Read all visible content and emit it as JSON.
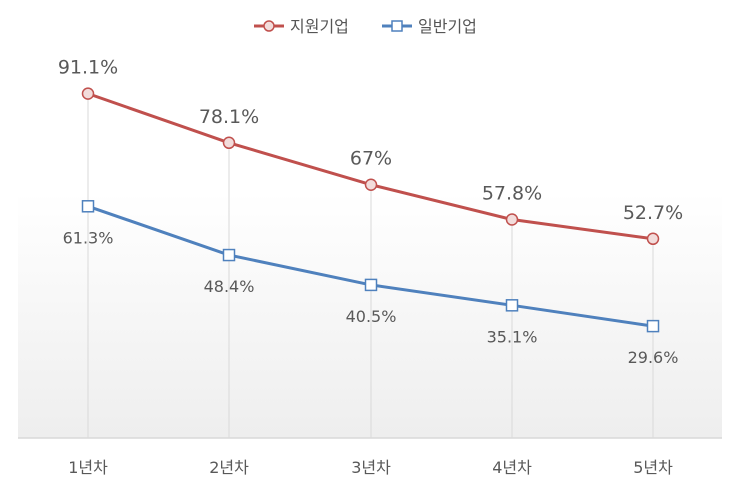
{
  "chart_data": {
    "type": "line",
    "categories": [
      "1년차",
      "2년차",
      "3년차",
      "4년차",
      "5년차"
    ],
    "series": [
      {
        "name": "지원기업",
        "values": [
          91.1,
          78.1,
          67,
          57.8,
          52.7
        ],
        "labels": [
          "91.1%",
          "78.1%",
          "67%",
          "57.8%",
          "52.7%"
        ],
        "color": "#c0504d",
        "marker": "circle"
      },
      {
        "name": "일반기업",
        "values": [
          61.3,
          48.4,
          40.5,
          35.1,
          29.6
        ],
        "labels": [
          "61.3%",
          "48.4%",
          "40.5%",
          "35.1%",
          "29.6%"
        ],
        "color": "#4f81bd",
        "marker": "square"
      }
    ],
    "ylim": [
      0,
      110
    ],
    "legend": "top-center",
    "grid": false,
    "drop_lines": true
  }
}
